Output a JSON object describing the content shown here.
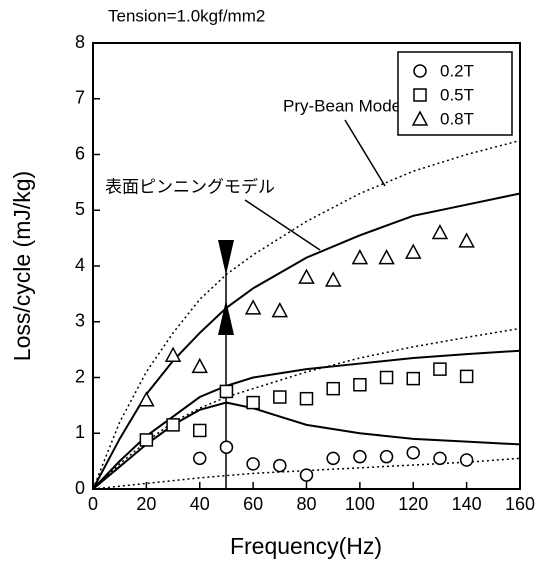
{
  "chart_data": {
    "type": "scatter",
    "title": "Tension=1.0kgf/mm2",
    "xlabel": "Frequency(Hz)",
    "ylabel": "Loss/cycle (mJ/kg)",
    "xlim": [
      0,
      160
    ],
    "ylim": [
      0,
      8
    ],
    "xticks": [
      0,
      20,
      40,
      60,
      80,
      100,
      120,
      140,
      160
    ],
    "yticks": [
      0,
      1,
      2,
      3,
      4,
      5,
      6,
      7,
      8
    ],
    "legend": "upper right",
    "color": "#000000",
    "annotations": [
      "Pry-Bean Model",
      "表面ピンニングモデル"
    ],
    "series": [
      {
        "name": "0.2T",
        "marker": "circle",
        "x": [
          40,
          50,
          60,
          70,
          80,
          90,
          100,
          110,
          120,
          130,
          140
        ],
        "values": [
          0.55,
          0.75,
          0.45,
          0.42,
          0.25,
          0.55,
          0.58,
          0.58,
          0.65,
          0.55,
          0.52
        ]
      },
      {
        "name": "0.5T",
        "marker": "square",
        "x": [
          20,
          30,
          40,
          50,
          60,
          70,
          80,
          90,
          100,
          110,
          120,
          130,
          140
        ],
        "values": [
          0.88,
          1.15,
          1.05,
          1.75,
          1.55,
          1.65,
          1.62,
          1.8,
          1.87,
          2.0,
          1.98,
          2.15,
          2.02
        ]
      },
      {
        "name": "0.8T",
        "marker": "triangle",
        "x": [
          20,
          30,
          40,
          60,
          70,
          80,
          90,
          100,
          110,
          120,
          130,
          140
        ],
        "values": [
          1.6,
          2.4,
          2.2,
          3.25,
          3.2,
          3.8,
          3.75,
          4.15,
          4.15,
          4.25,
          4.6,
          4.45
        ]
      }
    ],
    "curves": [
      {
        "style": "dotted",
        "x": [
          0,
          10,
          20,
          30,
          40,
          50,
          60,
          80,
          100,
          120,
          140,
          160
        ],
        "values": [
          0,
          1.2,
          2.1,
          2.8,
          3.4,
          3.85,
          4.2,
          4.8,
          5.3,
          5.7,
          6.0,
          6.25
        ]
      },
      {
        "style": "solid",
        "x": [
          0,
          10,
          20,
          30,
          40,
          50,
          60,
          80,
          100,
          120,
          140,
          160
        ],
        "values": [
          0,
          0.9,
          1.7,
          2.3,
          2.8,
          3.25,
          3.6,
          4.15,
          4.55,
          4.9,
          5.1,
          5.3
        ]
      },
      {
        "style": "solid",
        "x": [
          0,
          10,
          20,
          30,
          40,
          50,
          60,
          80,
          100,
          120,
          140,
          160
        ],
        "values": [
          0,
          0.5,
          0.95,
          1.3,
          1.65,
          1.85,
          2.0,
          2.15,
          2.25,
          2.35,
          2.42,
          2.48
        ]
      },
      {
        "style": "dotted",
        "x": [
          0,
          10,
          20,
          30,
          40,
          50,
          60,
          80,
          100,
          120,
          140,
          160
        ],
        "values": [
          0,
          0.45,
          0.85,
          1.2,
          1.45,
          1.65,
          1.8,
          2.1,
          2.35,
          2.55,
          2.72,
          2.88
        ]
      },
      {
        "style": "solid",
        "x": [
          0,
          10,
          20,
          30,
          40,
          50,
          60,
          70,
          80,
          100,
          120,
          140,
          160
        ],
        "values": [
          0,
          0.4,
          0.8,
          1.15,
          1.42,
          1.55,
          1.45,
          1.3,
          1.15,
          1.0,
          0.9,
          0.85,
          0.8
        ]
      },
      {
        "style": "dotted",
        "x": [
          0,
          20,
          40,
          60,
          80,
          100,
          120,
          140,
          160
        ],
        "values": [
          0,
          0.1,
          0.2,
          0.28,
          0.33,
          0.38,
          0.43,
          0.48,
          0.55
        ]
      }
    ]
  }
}
